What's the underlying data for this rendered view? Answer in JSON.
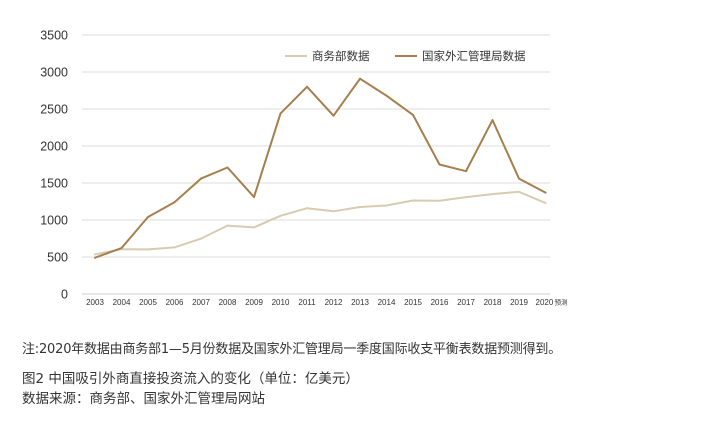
{
  "chart_data": {
    "type": "line",
    "title": "",
    "xlabel": "",
    "ylabel": "",
    "categories": [
      "2003",
      "2004",
      "2005",
      "2006",
      "2007",
      "2008",
      "2009",
      "2010",
      "2011",
      "2012",
      "2013",
      "2014",
      "2015",
      "2016",
      "2017",
      "2018",
      "2019",
      "2020"
    ],
    "x_tick_labels": [
      "2003",
      "2004",
      "2005",
      "2006",
      "2007",
      "2008",
      "2009",
      "2010",
      "2011",
      "2012",
      "2013",
      "2014",
      "2015",
      "2016",
      "2017",
      "2018",
      "2019",
      "2020"
    ],
    "x_tick_suffix_last": "预测",
    "ylim": [
      0,
      3500
    ],
    "y_ticks": [
      0,
      500,
      1000,
      1500,
      2000,
      2500,
      3000,
      3500
    ],
    "grid": true,
    "legend_position": "top-right",
    "series": [
      {
        "name": "商务部数据",
        "color": "#d9cbb0",
        "values": [
          535,
          606,
          603,
          630,
          748,
          924,
          900,
          1057,
          1160,
          1117,
          1176,
          1196,
          1263,
          1260,
          1310,
          1350,
          1381,
          1230
        ]
      },
      {
        "name": "国家外汇管理局数据",
        "color": "#a57f4d",
        "values": [
          490,
          620,
          1040,
          1240,
          1560,
          1710,
          1310,
          2440,
          2800,
          2410,
          2910,
          2680,
          2420,
          1750,
          1660,
          2350,
          1560,
          1370
        ]
      }
    ]
  },
  "captions": {
    "note": "注:2020年数据由商务部1—5月份数据及国家外汇管理局一季度国际收支平衡表数据预测得到。",
    "figure_title": "图2  中国吸引外商直接投资流入的变化（单位：亿美元）",
    "source": "数据来源：商务部、国家外汇管理局网站"
  }
}
